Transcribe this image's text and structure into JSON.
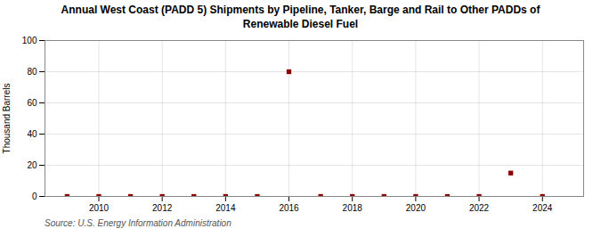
{
  "chart_data": {
    "type": "scatter",
    "title": "Annual West Coast (PADD 5) Shipments by Pipeline, Tanker, Barge and Rail to Other PADDs of\nRenewable Diesel Fuel",
    "ylabel": "Thousand Barrels",
    "source": "Source: U.S. Energy Information Administration",
    "x": [
      2009,
      2010,
      2011,
      2012,
      2013,
      2014,
      2015,
      2016,
      2017,
      2018,
      2019,
      2020,
      2021,
      2022,
      2023,
      2024
    ],
    "values": [
      0,
      0,
      0,
      0,
      0,
      0,
      0,
      80,
      0,
      0,
      0,
      0,
      0,
      0,
      15,
      0
    ],
    "color": "#8b0000",
    "marker": "square",
    "xlim": [
      2008.3,
      2025.3
    ],
    "xticks": [
      2010,
      2012,
      2014,
      2016,
      2018,
      2020,
      2022,
      2024
    ],
    "ylim": [
      0,
      100
    ],
    "yticks": [
      0,
      20,
      40,
      60,
      80,
      100
    ],
    "grid": true
  }
}
